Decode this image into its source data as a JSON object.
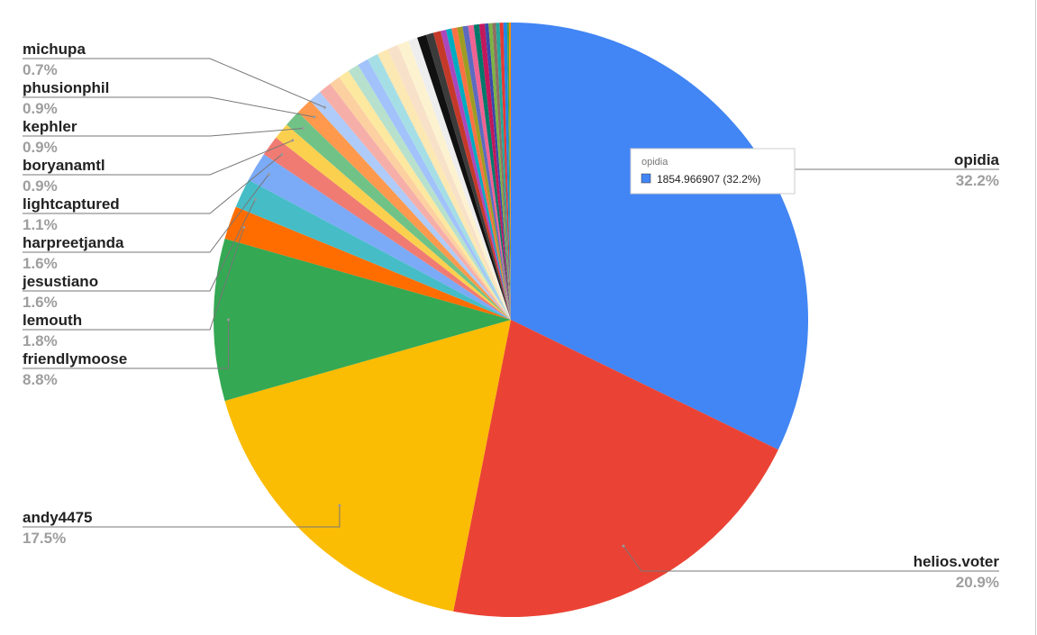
{
  "chart_data": {
    "type": "pie",
    "categories": [
      "opidia",
      "helios.voter",
      "andy4475",
      "friendlymoose",
      "lemouth",
      "jesustiano",
      "harpreetjanda",
      "lightcaptured",
      "boryanamtl",
      "kephler",
      "phusionphil",
      "michupa",
      null,
      null,
      null,
      null,
      null,
      null,
      null,
      null,
      null,
      null,
      null,
      null,
      null,
      null,
      null,
      null,
      null,
      null,
      null,
      null,
      null,
      null,
      null,
      null,
      null,
      null,
      null,
      null,
      null
    ],
    "values": [
      32.2,
      20.9,
      17.5,
      8.8,
      1.8,
      1.6,
      1.6,
      1.1,
      0.9,
      0.9,
      0.9,
      0.7,
      0.7,
      0.6,
      0.6,
      0.6,
      0.6,
      0.6,
      0.6,
      0.6,
      0.6,
      0.5,
      0.5,
      0.4,
      0.4,
      0.3,
      0.3,
      0.3,
      0.3,
      0.3,
      0.3,
      0.3,
      0.3,
      0.2,
      0.2,
      0.2,
      0.2,
      0.2,
      0.2,
      0.1,
      0.1
    ],
    "value_labels": [
      "32.2%",
      "20.9%",
      "17.5%",
      "8.8%",
      "1.8%",
      "1.6%",
      "1.6%",
      "1.1%",
      "0.9%",
      "0.9%",
      "0.9%",
      "0.7%",
      null,
      null,
      null,
      null,
      null,
      null,
      null,
      null,
      null,
      null,
      null,
      null,
      null,
      null,
      null,
      null,
      null,
      null,
      null,
      null,
      null,
      null,
      null,
      null,
      null,
      null,
      null,
      null,
      null
    ],
    "colors": [
      "#4285f4",
      "#ea4335",
      "#fbbc04",
      "#34a853",
      "#ff6d01",
      "#46bdc6",
      "#7baaf7",
      "#f07b72",
      "#fcd04f",
      "#71c287",
      "#ff994d",
      "#aecbfa",
      "#f6aea9",
      "#fcd0a1",
      "#fde8a0",
      "#b7e1cd",
      "#a1c2fa",
      "#a6dee6",
      "#fce8b2",
      "#f7e1c8",
      "#fdf2d0",
      "#eeeeee",
      "#111111",
      "#3b3b3b",
      "#c53929",
      "#ab47bc",
      "#00acc1",
      "#ff7043",
      "#9e9d24",
      "#5c6bc0",
      "#f06292",
      "#00796b",
      "#c2185b",
      "#3949ab",
      "#7cb342",
      "#8d6e63",
      "#26a69a",
      "#e53935",
      "#1e88e5",
      "#43a047",
      "#fb8c00"
    ],
    "tooltip": {
      "title": "opidia",
      "text": "1854.966907 (32.2%)"
    }
  }
}
